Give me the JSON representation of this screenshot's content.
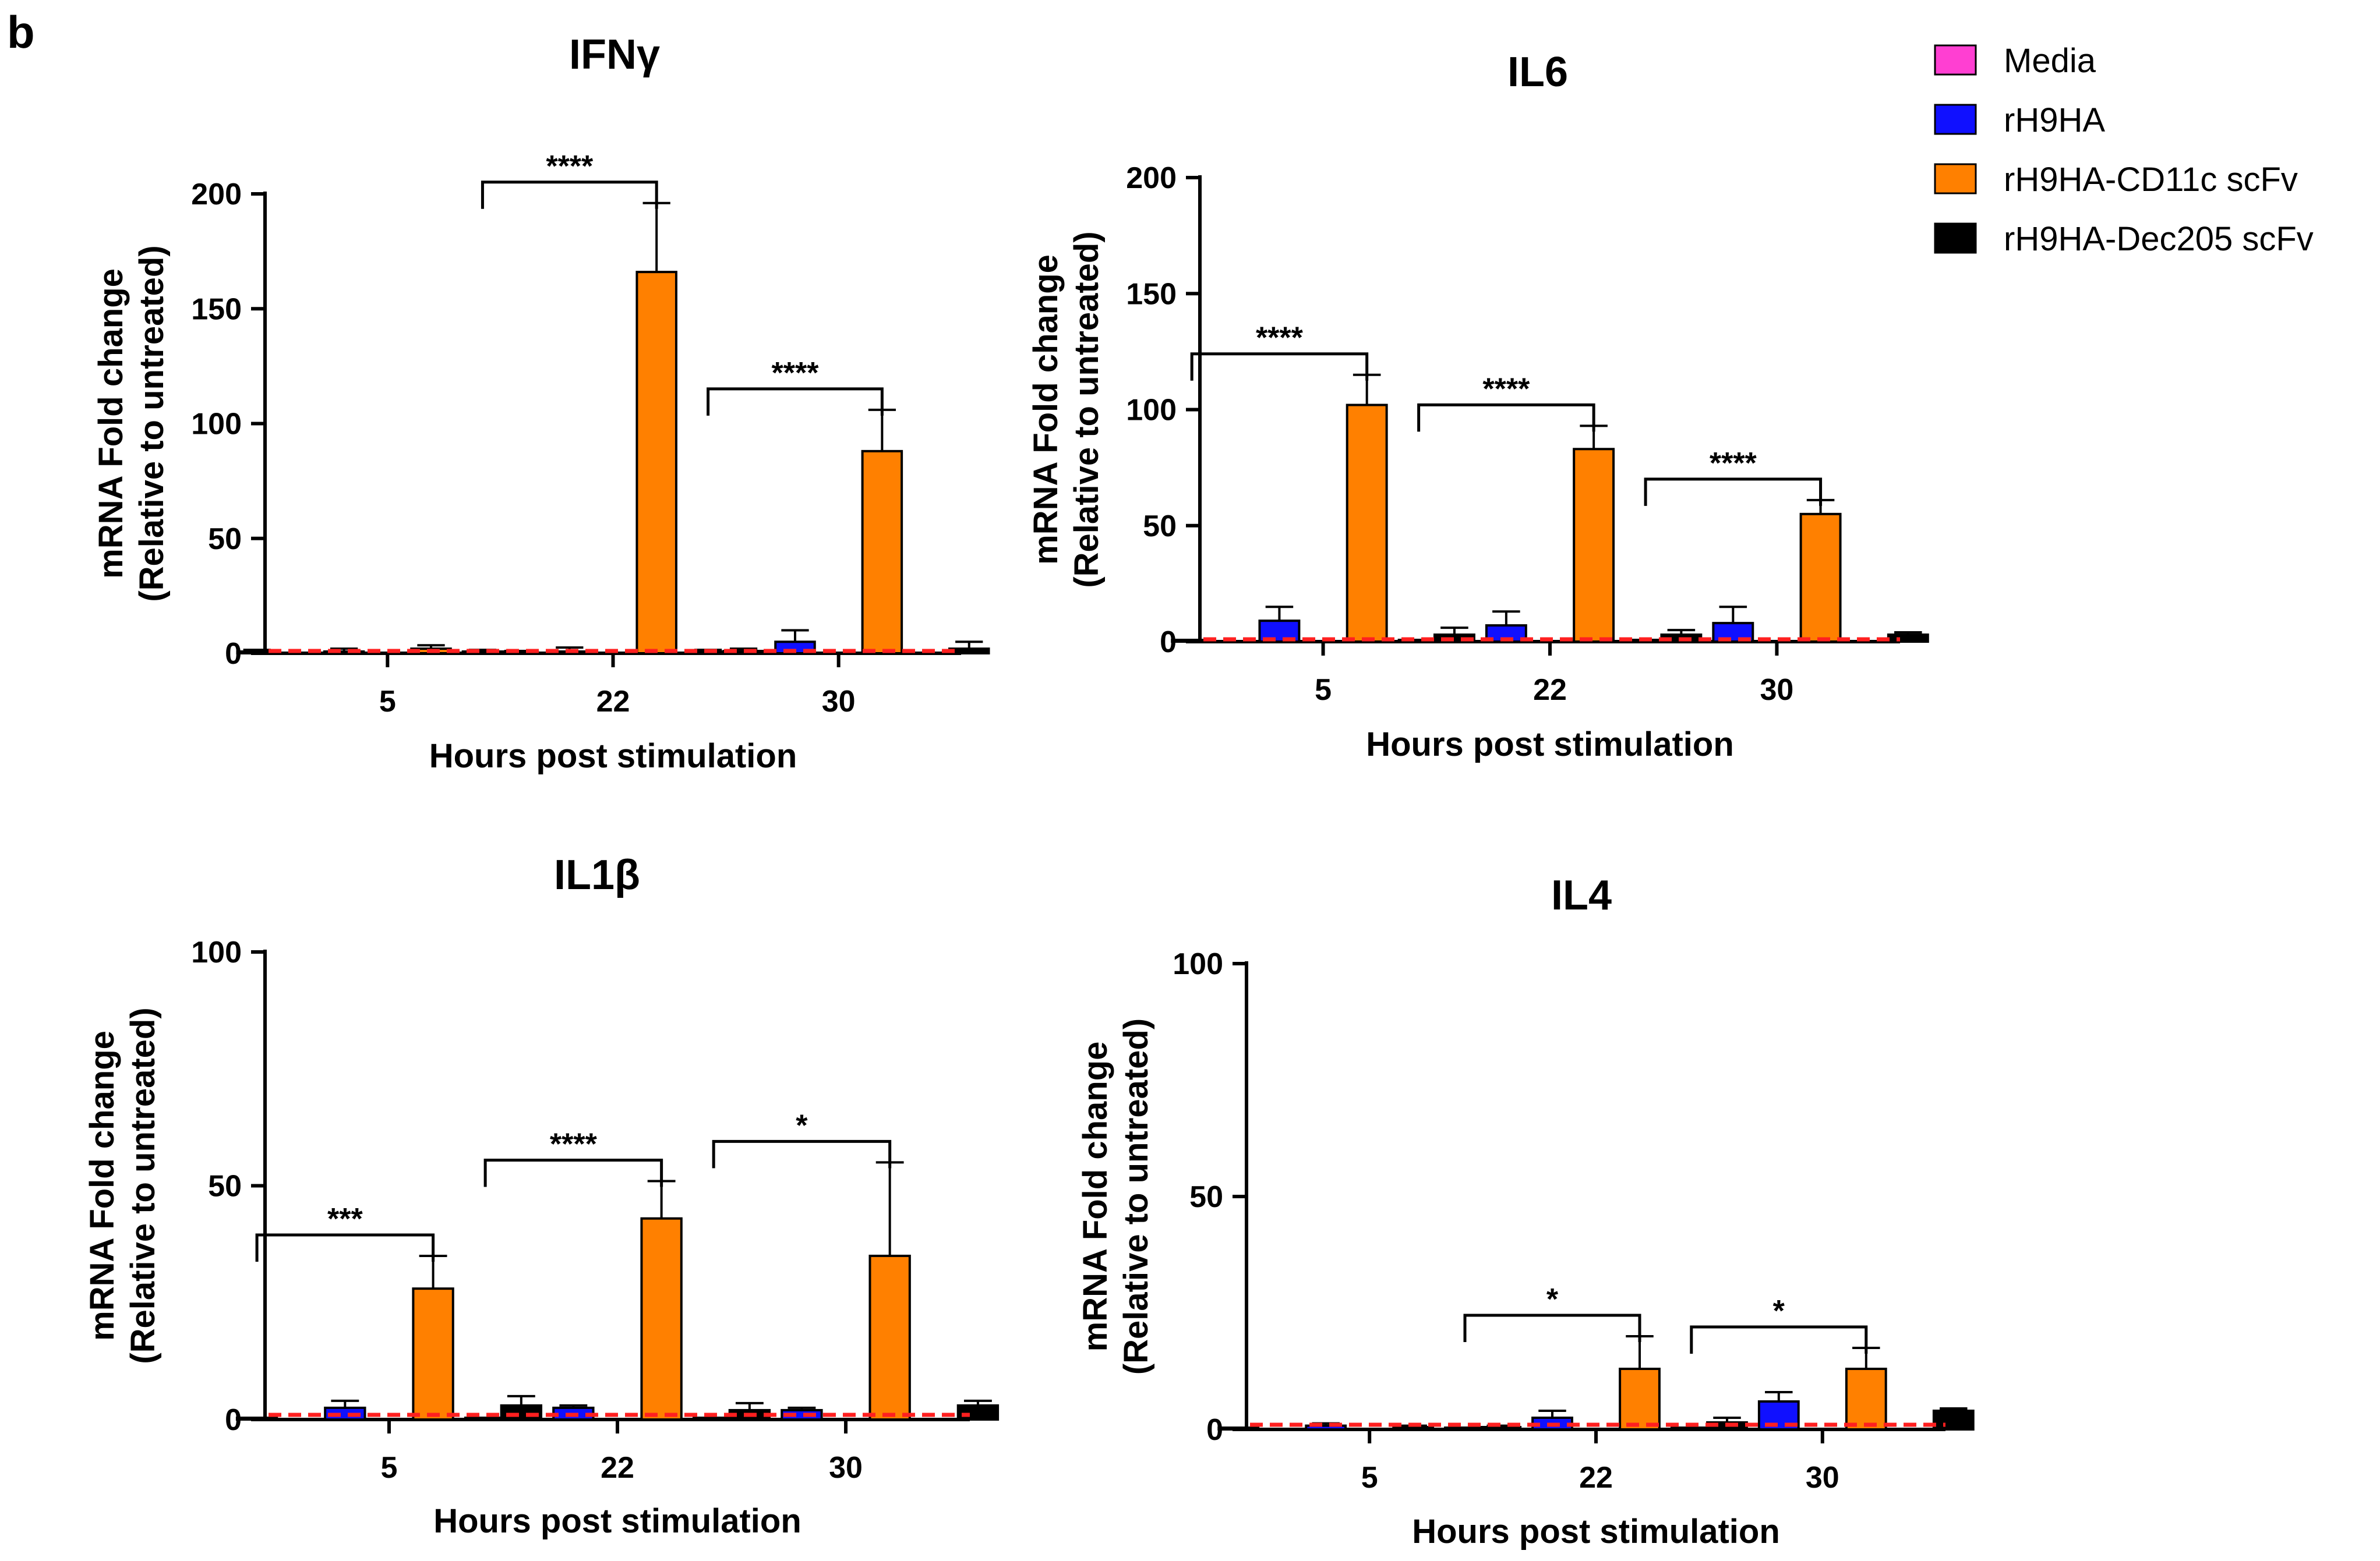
{
  "panel_letter": "b",
  "legend": {
    "position": "top-right",
    "items": [
      {
        "label": "Media",
        "color": "#ff3fd2"
      },
      {
        "label": "rH9HA",
        "color": "#1010ff"
      },
      {
        "label": "rH9HA-CD11c scFv",
        "color": "#ff8000"
      },
      {
        "label": "rH9HA-Dec205 scFv",
        "color": "#000000"
      }
    ]
  },
  "chart_data": [
    {
      "type": "bar",
      "title": "IFNγ",
      "xlabel": "Hours post stimulation",
      "ylabel": [
        "mRNA Fold change",
        "(Relative to untreated)"
      ],
      "categories": [
        "5",
        "22",
        "30"
      ],
      "ylim": [
        0,
        200
      ],
      "yticks": [
        0,
        50,
        100,
        150,
        200
      ],
      "baseline": 1,
      "series": [
        {
          "name": "Media",
          "values": [
            0.5,
            0.5,
            0.5
          ],
          "errors": [
            1,
            1,
            1
          ]
        },
        {
          "name": "rH9HA",
          "values": [
            0.5,
            0.5,
            5
          ],
          "errors": [
            1.5,
            2,
            5
          ]
        },
        {
          "name": "rH9HA-CD11c scFv",
          "values": [
            2,
            166,
            88
          ],
          "errors": [
            1.5,
            30,
            18
          ]
        },
        {
          "name": "rH9HA-Dec205 scFv",
          "values": [
            0.5,
            1,
            2
          ],
          "errors": [
            0.5,
            1,
            3
          ]
        }
      ],
      "significance": [
        {
          "category": "22",
          "label": "****"
        },
        {
          "category": "30",
          "label": "****"
        }
      ]
    },
    {
      "type": "bar",
      "title": "IL6",
      "xlabel": "Hours post stimulation",
      "ylabel": [
        "mRNA Fold change",
        "(Relative to untreated)"
      ],
      "categories": [
        "5",
        "22",
        "30"
      ],
      "ylim": [
        0,
        200
      ],
      "yticks": [
        0,
        50,
        100,
        150,
        200
      ],
      "baseline": 1,
      "series": [
        {
          "name": "Media",
          "values": [
            0.5,
            0.5,
            0.5
          ],
          "errors": [
            0,
            0,
            0
          ]
        },
        {
          "name": "rH9HA",
          "values": [
            9,
            7,
            8
          ],
          "errors": [
            6,
            6,
            7
          ]
        },
        {
          "name": "rH9HA-CD11c scFv",
          "values": [
            102,
            83,
            55
          ],
          "errors": [
            13,
            10,
            6
          ]
        },
        {
          "name": "rH9HA-Dec205 scFv",
          "values": [
            3,
            3,
            3
          ],
          "errors": [
            3,
            2,
            1
          ]
        }
      ],
      "significance": [
        {
          "category": "5",
          "label": "****"
        },
        {
          "category": "22",
          "label": "****"
        },
        {
          "category": "30",
          "label": "****"
        }
      ]
    },
    {
      "type": "bar",
      "title": "IL1β",
      "xlabel": "Hours post stimulation",
      "ylabel": [
        "mRNA Fold change",
        "(Relative to untreated)"
      ],
      "categories": [
        "5",
        "22",
        "30"
      ],
      "ylim": [
        0,
        100
      ],
      "yticks": [
        0,
        50,
        100
      ],
      "baseline": 1,
      "series": [
        {
          "name": "Media",
          "values": [
            0.3,
            0.3,
            0.3
          ],
          "errors": [
            0,
            0,
            0
          ]
        },
        {
          "name": "rH9HA",
          "values": [
            2.5,
            2.5,
            2
          ],
          "errors": [
            1.5,
            0.5,
            0.5
          ]
        },
        {
          "name": "rH9HA-CD11c scFv",
          "values": [
            28,
            43,
            35
          ],
          "errors": [
            7,
            8,
            20
          ]
        },
        {
          "name": "rH9HA-Dec205 scFv",
          "values": [
            3,
            2,
            3
          ],
          "errors": [
            2,
            1.5,
            1
          ]
        }
      ],
      "significance": [
        {
          "category": "5",
          "label": "***"
        },
        {
          "category": "22",
          "label": "****"
        },
        {
          "category": "30",
          "label": "*"
        }
      ]
    },
    {
      "type": "bar",
      "title": "IL4",
      "xlabel": "Hours post stimulation",
      "ylabel": [
        "mRNA Fold change",
        "(Relative to untreated)"
      ],
      "categories": [
        "5",
        "22",
        "30"
      ],
      "ylim": [
        0,
        100
      ],
      "yticks": [
        0,
        50,
        100
      ],
      "baseline": 1,
      "series": [
        {
          "name": "Media",
          "values": [
            0.3,
            0.3,
            0.3
          ],
          "errors": [
            0,
            0,
            0
          ]
        },
        {
          "name": "rH9HA",
          "values": [
            0.8,
            2.5,
            6
          ],
          "errors": [
            0.5,
            1.5,
            2
          ]
        },
        {
          "name": "rH9HA-CD11c scFv",
          "values": [
            0.5,
            13,
            13
          ],
          "errors": [
            0.3,
            7,
            4.5
          ]
        },
        {
          "name": "rH9HA-Dec205 scFv",
          "values": [
            0.5,
            1.5,
            4
          ],
          "errors": [
            0.3,
            1,
            0.5
          ]
        }
      ],
      "significance": [
        {
          "category": "22",
          "label": "*"
        },
        {
          "category": "30",
          "label": "*"
        }
      ]
    }
  ]
}
